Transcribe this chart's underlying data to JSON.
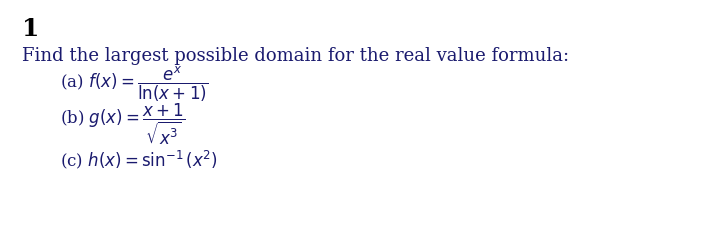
{
  "background_color": "#ffffff",
  "number": "1",
  "number_color": "#000000",
  "number_fontsize": 18,
  "intro_text": "Find the largest possible domain for the real value formula:",
  "intro_fontsize": 13,
  "text_color": "#1a1a6e",
  "items": [
    {
      "label": "(a) $f(x) = \\dfrac{e^{x}}{\\ln(x+1)}$",
      "fontsize": 12
    },
    {
      "label": "(b) $g(x) = \\dfrac{x+1}{\\sqrt{x^3}}$",
      "fontsize": 12
    },
    {
      "label": "(c) $h(x) = \\sin^{-1}(x^2)$",
      "fontsize": 12
    }
  ]
}
